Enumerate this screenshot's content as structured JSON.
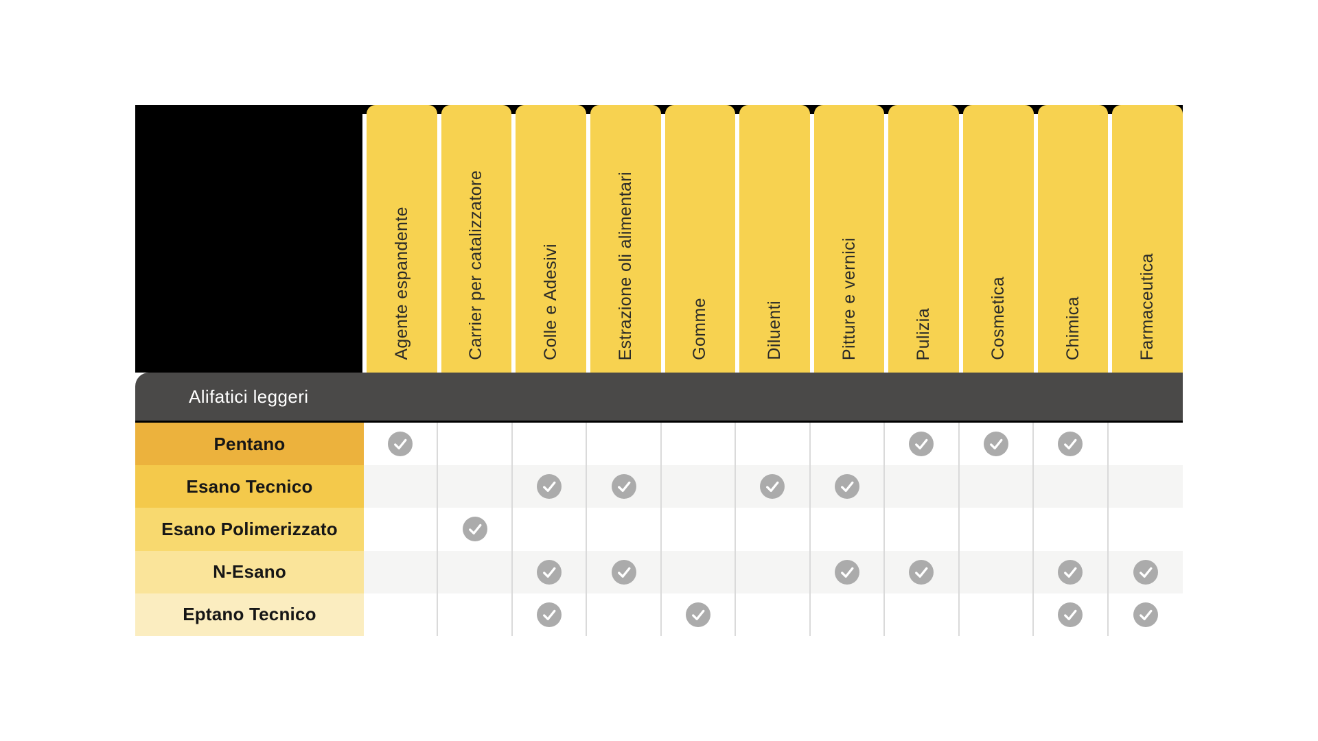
{
  "matrix": {
    "section_label": "Alifatici leggeri",
    "columns": [
      "Agente espandente",
      "Carrier per catalizzatore",
      "Colle e Adesivi",
      "Estrazione oli alimentari",
      "Gomme",
      "Diluenti",
      "Pitture e vernici",
      "Pulizia",
      "Cosmetica",
      "Chimica",
      "Farmaceutica"
    ],
    "rows": [
      {
        "label": "Pentano",
        "label_bg": "#ECB23D",
        "checks": [
          1,
          0,
          0,
          0,
          0,
          0,
          0,
          1,
          1,
          1,
          0
        ]
      },
      {
        "label": "Esano Tecnico",
        "label_bg": "#F4C94B",
        "checks": [
          0,
          0,
          1,
          1,
          0,
          1,
          1,
          0,
          0,
          0,
          0
        ]
      },
      {
        "label": "Esano Polimerizzato",
        "label_bg": "#F8D96F",
        "checks": [
          0,
          1,
          0,
          0,
          0,
          0,
          0,
          0,
          0,
          0,
          0
        ]
      },
      {
        "label": "N-Esano",
        "label_bg": "#FAE49A",
        "checks": [
          0,
          0,
          1,
          1,
          0,
          0,
          1,
          1,
          0,
          1,
          1
        ]
      },
      {
        "label": "Eptano Tecnico",
        "label_bg": "#FBEDC0",
        "checks": [
          0,
          0,
          1,
          0,
          1,
          0,
          0,
          0,
          0,
          1,
          1
        ]
      }
    ],
    "check_icon": "checkmark-in-circle",
    "colors": {
      "col_yellow": "#F7D250",
      "header_black": "#000000",
      "header_text": "#2B2B28",
      "section_bg": "#4A4948",
      "section_text": "#FFFFFF",
      "label_text": "#161616",
      "row_bg_even": "#FFFFFF",
      "row_bg_odd": "#F5F5F4",
      "separator": "#DADADA",
      "check_circle": "#ABABAB",
      "check_mark": "#FFFFFF"
    }
  }
}
